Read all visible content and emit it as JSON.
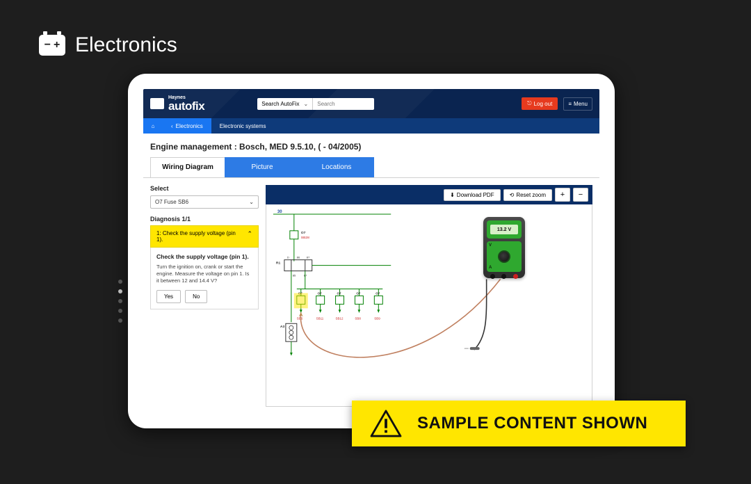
{
  "category": {
    "label": "Electronics"
  },
  "brand": {
    "top": "Haynes",
    "bottom": "autofix"
  },
  "search": {
    "scope": "Search AutoFix",
    "placeholder": "Search"
  },
  "header": {
    "logout": "Log out",
    "menu": "Menu"
  },
  "breadcrumbs": {
    "back": "Electronics",
    "current": "Electronic systems"
  },
  "page": {
    "title": "Engine management :  Bosch, MED 9.5.10, ( - 04/2005)"
  },
  "tabs": {
    "t1": "Wiring Diagram",
    "t2": "Picture",
    "t3": "Locations"
  },
  "select": {
    "label": "Select",
    "value": "O7  Fuse  SB6"
  },
  "diagnosis": {
    "title": "Diagnosis 1/1",
    "step_label": "1: Check the supply voltage (pin 1).",
    "heading": "Check the supply voltage (pin 1).",
    "body": "Turn the ignition on, crank or start the engine. Measure the voltage on pin 1. Is it between 12 and 14.4 V?",
    "yes": "Yes",
    "no": "No"
  },
  "toolbar": {
    "download": "Download PDF",
    "reset": "Reset zoom",
    "plus": "+",
    "minus": "−"
  },
  "meter": {
    "reading": "13.2 V",
    "v": "V",
    "a": "A"
  },
  "banner": {
    "text": "SAMPLE CONTENT SHOWN"
  },
  "wiring": {
    "top_label": "30",
    "fuse_main": {
      "id": "O7",
      "sub": "SB28"
    },
    "relay": {
      "id": "R1",
      "pins": [
        "D",
        "86",
        "87"
      ],
      "below": [
        "85",
        "87"
      ]
    },
    "bus_fuses": [
      {
        "id": "O7",
        "sub": "SB6"
      },
      {
        "id": "O7",
        "sub": "SB11"
      },
      {
        "id": "O7",
        "sub": "SB12"
      },
      {
        "id": "O7",
        "sub": "SB8"
      },
      {
        "id": "O7",
        "sub": "SB9"
      }
    ],
    "coil": {
      "id": "A3"
    },
    "colors": {
      "wire": "#008000",
      "label": "#c22",
      "probe_red": "#c08060",
      "probe_black": "#333333"
    }
  }
}
